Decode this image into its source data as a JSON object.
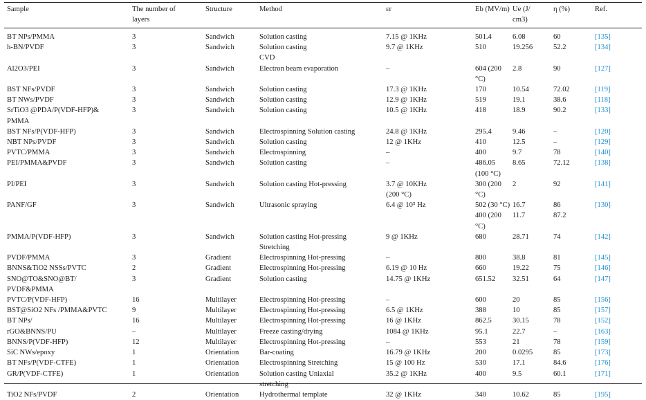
{
  "table": {
    "headers": [
      "Sample",
      "The number of\nlayers",
      "Structure",
      "Method",
      "εr",
      "Eb (MV/m)",
      "Ue (J/\ncm3)",
      "η (%)",
      "Ref."
    ],
    "rows": [
      [
        "BT NPs/PMMA",
        "3",
        "Sandwich",
        "Solution casting",
        "7.15 @ 1KHz",
        "501.4",
        "6.08",
        "60",
        "[135]"
      ],
      [
        "h-BN/PVDF",
        "3",
        "Sandwich",
        "Solution casting\nCVD",
        "9.7 @ 1KHz",
        "510",
        "19.256",
        "52.2",
        "[134]"
      ],
      [
        "Al2O3/PEI",
        "3",
        "Sandwich",
        "Electron beam evaporation",
        "–",
        "604 (200 °C)",
        "2.8",
        "90",
        "[127]"
      ],
      [
        "BST NFs/PVDF",
        "3",
        "Sandwich",
        "Solution casting",
        "17.3 @ 1KHz",
        "170",
        "10.54",
        "72.02",
        "[119]"
      ],
      [
        "BT NWs/PVDF",
        "3",
        "Sandwich",
        "Solution casting",
        "12.9 @ 1KHz",
        "519",
        "19.1",
        "38.6",
        "[118]"
      ],
      [
        "SrTiO3 @PDA/P(VDF-HFP)&\nPMMA",
        "3",
        "Sandwich",
        "Solution casting",
        "10.5 @ 1KHz",
        "418",
        "18.9",
        "90.2",
        "[133]"
      ],
      [
        "BST NFs/P(VDF-HFP)",
        "3",
        "Sandwich",
        "Electrospinning Solution casting",
        "24.8 @ 1KHz",
        "295.4",
        "9.46",
        "–",
        "[120]"
      ],
      [
        "NBT NPs/PVDF",
        "3",
        "Sandwich",
        "Solution casting",
        "12 @ 1KHz",
        "410",
        "12.5",
        "–",
        "[129]"
      ],
      [
        "PVTC/PMMA",
        "3",
        "Sandwich",
        "Electrospinning",
        "–",
        "400",
        "9.7",
        "78",
        "[140]"
      ],
      [
        "PEI/PMMA&PVDF",
        "3",
        "Sandwich",
        "Solution casting",
        "–",
        "486.05\n(100 °C)",
        "8.65",
        "72.12",
        "[138]"
      ],
      [
        "PI/PEI",
        "3",
        "Sandwich",
        "Solution casting Hot-pressing",
        "3.7 @ 10KHz\n(200 °C)",
        "300 (200 °C)",
        "2",
        "92",
        "[141]"
      ],
      [
        "PANF/GF",
        "3",
        "Sandwich",
        "Ultrasonic spraying",
        "6.4 @ 10⁵ Hz",
        "502 (30 °C)\n400 (200 °C)",
        "16.7\n11.7",
        "86\n87.2",
        "[130]"
      ],
      [
        "PMMA/P(VDF-HFP)",
        "3",
        "Sandwich",
        "Solution casting Hot-pressing\nStretching",
        "9 @ 1KHz",
        "680",
        "28.71",
        "74",
        "[142]"
      ],
      [
        "PVDF/PMMA",
        "3",
        "Gradient",
        "Electrospinning Hot-pressing",
        "–",
        "800",
        "38.8",
        "81",
        "[145]"
      ],
      [
        "BNNS&TiO2 NSSs/PVTC",
        "2",
        "Gradient",
        "Electrospinning Hot-pressing",
        "6.19 @ 10 Hz",
        "660",
        "19.22",
        "75",
        "[146]"
      ],
      [
        "SNO@TO&SNO@BT/\nPVDF&PMMA",
        "3",
        "Gradient",
        "Solution casting",
        "14.75 @ 1KHz",
        "651.52",
        "32.51",
        "64",
        "[147]"
      ],
      [
        "PVTC/P(VDF-HFP)",
        "16",
        "Multilayer",
        "Electrospinning Hot-pressing",
        "–",
        "600",
        "20",
        "85",
        "[156]"
      ],
      [
        "BST@SiO2 NFs /PMMA&PVTC",
        "9",
        "Multilayer",
        "Electrospinning Hot-pressing",
        "6.5 @ 1KHz",
        "388",
        "10",
        "85",
        "[157]"
      ],
      [
        "BT NPs/",
        "16",
        "Multilayer",
        "Electrospinning Hot-pressing",
        "16 @ 1KHz",
        "862.5",
        "30.15",
        "78",
        "[152]"
      ],
      [
        "rGO&BNNS/PU",
        "–",
        "Multilayer",
        "Freeze casting/drying",
        "1084 @ 1KHz",
        "95.1",
        "22.7",
        "–",
        "[163]"
      ],
      [
        "BNNS/P(VDF-HFP)",
        "12",
        "Multilayer",
        "Electrospinning Hot-pressing",
        "–",
        "553",
        "21",
        "78",
        "[159]"
      ],
      [
        "SiC NWs/epoxy",
        "1",
        "Orientation",
        "Bar-coating",
        "16.79 @ 1KHz",
        "200",
        "0.0295",
        "85",
        "[173]"
      ],
      [
        "BT NFs/P(VDF-CTFE)",
        "1",
        "Orientation",
        "Electrospinning Stretching",
        "15 @ 100 Hz",
        "530",
        "17.1",
        "84.6",
        "[176]"
      ],
      [
        "GR/P(VDF-CTFE)",
        "1",
        "Orientation",
        "Solution casting Uniaxial\nstretching",
        "35.2 @ 1KHz",
        "400",
        "9.5",
        "60.1",
        "[171]"
      ],
      [
        "TiO2 NFs/PVDF",
        "2",
        "Orientation",
        "Hydrothermal template",
        "32 @ 1KHz",
        "340",
        "10.62",
        "85",
        "[195]"
      ]
    ]
  }
}
